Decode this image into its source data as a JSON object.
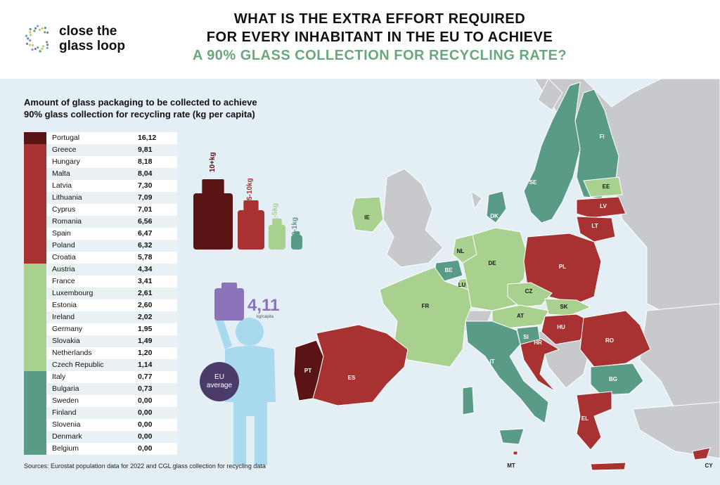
{
  "brand": {
    "name_line1": "close the",
    "name_line2": "glass loop"
  },
  "title": {
    "line1": "WHAT IS THE EXTRA EFFORT REQUIRED",
    "line2": "FOR EVERY INHABITANT IN THE EU TO ACHIEVE",
    "line3": "A 90% GLASS COLLECTION FOR RECYCLING RATE?"
  },
  "left_title": {
    "line1": "Amount of glass packaging to be collected to achieve",
    "line2": "90% glass collection for recycling rate (kg per capita)"
  },
  "colors": {
    "tier_10plus": "#5a1414",
    "tier_5_10": "#a83232",
    "tier_1_5": "#a8d08f",
    "tier_0_1": "#5a9b87",
    "non_eu": "#c8c9cc",
    "sea": "#e4eff5",
    "eu_average": "#8a73b8"
  },
  "chart_data": {
    "type": "table",
    "unit": "kg per capita",
    "rows": [
      {
        "country": "Portugal",
        "value": "16,12",
        "tier": "10+kg"
      },
      {
        "country": "Greece",
        "value": "9,81",
        "tier": "5-10kg"
      },
      {
        "country": "Hungary",
        "value": "8,18",
        "tier": "5-10kg"
      },
      {
        "country": "Malta",
        "value": "8,04",
        "tier": "5-10kg"
      },
      {
        "country": "Latvia",
        "value": "7,30",
        "tier": "5-10kg"
      },
      {
        "country": "Lithuania",
        "value": "7,09",
        "tier": "5-10kg"
      },
      {
        "country": "Cyprus",
        "value": "7,01",
        "tier": "5-10kg"
      },
      {
        "country": "Romania",
        "value": "6,56",
        "tier": "5-10kg"
      },
      {
        "country": "Spain",
        "value": "6,47",
        "tier": "5-10kg"
      },
      {
        "country": "Poland",
        "value": "6,32",
        "tier": "5-10kg"
      },
      {
        "country": "Croatia",
        "value": "5,78",
        "tier": "5-10kg"
      },
      {
        "country": "Austria",
        "value": "4,34",
        "tier": "1-5kg"
      },
      {
        "country": "France",
        "value": "3,41",
        "tier": "1-5kg"
      },
      {
        "country": "Luxembourg",
        "value": "2,61",
        "tier": "1-5kg"
      },
      {
        "country": "Estonia",
        "value": "2,60",
        "tier": "1-5kg"
      },
      {
        "country": "Ireland",
        "value": "2,02",
        "tier": "1-5kg"
      },
      {
        "country": "Germany",
        "value": "1,95",
        "tier": "1-5kg"
      },
      {
        "country": "Slovakia",
        "value": "1,49",
        "tier": "1-5kg"
      },
      {
        "country": "Netherlands",
        "value": "1,20",
        "tier": "1-5kg"
      },
      {
        "country": "Czech Republic",
        "value": "1,14",
        "tier": "1-5kg"
      },
      {
        "country": "Italy",
        "value": "0,77",
        "tier": "0-1kg"
      },
      {
        "country": "Bulgaria",
        "value": "0,73",
        "tier": "0-1kg"
      },
      {
        "country": "Sweden",
        "value": "0,00",
        "tier": "0-1kg"
      },
      {
        "country": "Finland",
        "value": "0,00",
        "tier": "0-1kg"
      },
      {
        "country": "Slovenia",
        "value": "0,00",
        "tier": "0-1kg"
      },
      {
        "country": "Denmark",
        "value": "0,00",
        "tier": "0-1kg"
      },
      {
        "country": "Belgium",
        "value": "0,00",
        "tier": "0-1kg"
      }
    ],
    "legend": [
      {
        "label": "10+kg",
        "tier": "10+kg"
      },
      {
        "label": "5-10kg",
        "tier": "5-10kg"
      },
      {
        "label": "1-5kg",
        "tier": "1-5kg"
      },
      {
        "label": "0-1kg",
        "tier": "0-1kg"
      }
    ],
    "eu_average": {
      "value": "4,11",
      "unit": "kg/capita",
      "label_line1": "EU",
      "label_line2": "average"
    }
  },
  "map_labels": [
    {
      "code": "FI",
      "tier": "0-1kg"
    },
    {
      "code": "SE",
      "tier": "0-1kg"
    },
    {
      "code": "EE",
      "tier": "1-5kg"
    },
    {
      "code": "LV",
      "tier": "5-10kg"
    },
    {
      "code": "LT",
      "tier": "5-10kg"
    },
    {
      "code": "DK",
      "tier": "0-1kg"
    },
    {
      "code": "IE",
      "tier": "1-5kg"
    },
    {
      "code": "NL",
      "tier": "1-5kg"
    },
    {
      "code": "BE",
      "tier": "0-1kg"
    },
    {
      "code": "LU",
      "tier": "1-5kg"
    },
    {
      "code": "DE",
      "tier": "1-5kg"
    },
    {
      "code": "PL",
      "tier": "5-10kg"
    },
    {
      "code": "CZ",
      "tier": "1-5kg"
    },
    {
      "code": "SK",
      "tier": "1-5kg"
    },
    {
      "code": "AT",
      "tier": "1-5kg"
    },
    {
      "code": "HU",
      "tier": "5-10kg"
    },
    {
      "code": "SI",
      "tier": "0-1kg"
    },
    {
      "code": "HR",
      "tier": "5-10kg"
    },
    {
      "code": "RO",
      "tier": "5-10kg"
    },
    {
      "code": "BG",
      "tier": "0-1kg"
    },
    {
      "code": "FR",
      "tier": "1-5kg"
    },
    {
      "code": "IT",
      "tier": "0-1kg"
    },
    {
      "code": "PT",
      "tier": "10+kg"
    },
    {
      "code": "ES",
      "tier": "5-10kg"
    },
    {
      "code": "EL",
      "tier": "5-10kg"
    },
    {
      "code": "MT",
      "tier": "5-10kg"
    },
    {
      "code": "CY",
      "tier": "5-10kg"
    }
  ],
  "source": "Sources: Eurostat population data for 2022 and CGL glass collection for recycling data"
}
